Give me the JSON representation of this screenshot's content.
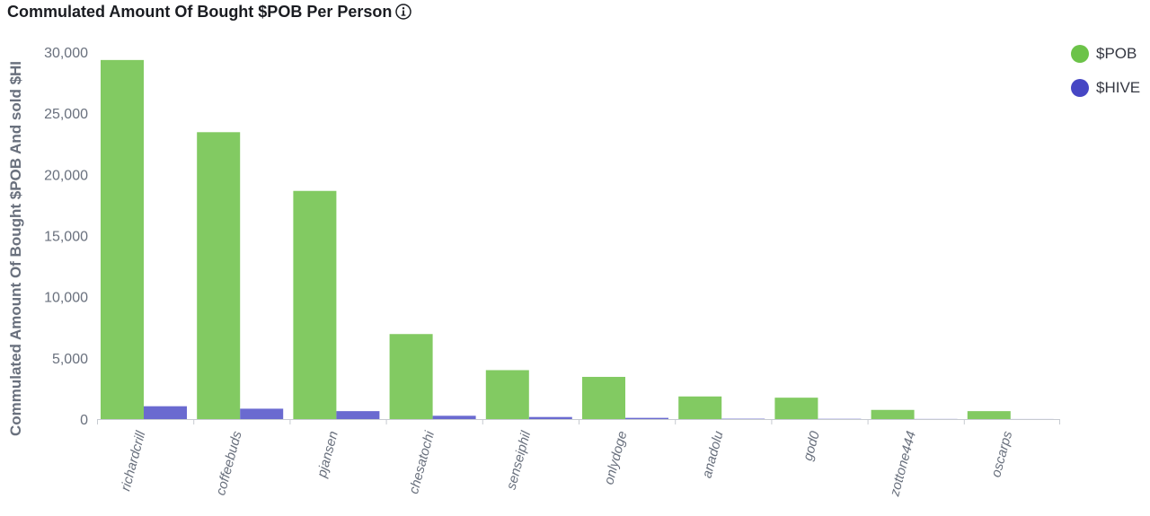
{
  "chart_data": {
    "type": "bar",
    "title": "Commulated Amount Of Bought $POB Per Person",
    "ylabel": "Commulated Amount Of Bought $POB And sold $HI",
    "xlabel": "",
    "categories": [
      "richardcrill",
      "coffeebuds",
      "pjansen",
      "chesatochi",
      "senseiphil",
      "onlydoge",
      "anadolu",
      "god0",
      "zottone444",
      "oscarps"
    ],
    "series": [
      {
        "name": "$POB",
        "color": "#82ca62",
        "values": [
          29350,
          23450,
          18650,
          6950,
          4000,
          3450,
          1850,
          1750,
          750,
          650
        ]
      },
      {
        "name": "$HIVE",
        "color": "#6a6ad0",
        "values": [
          1050,
          850,
          650,
          270,
          170,
          100,
          30,
          20,
          10,
          5
        ]
      }
    ],
    "ylim": [
      0,
      30000
    ],
    "yticks": [
      0,
      5000,
      10000,
      15000,
      20000,
      25000,
      30000
    ],
    "ytick_labels": [
      "0",
      "5,000",
      "10,000",
      "15,000",
      "20,000",
      "25,000",
      "30,000"
    ],
    "grid": false,
    "legend_position": "top-right",
    "legend": [
      {
        "label": "$POB",
        "color": "#6cc349"
      },
      {
        "label": "$HIVE",
        "color": "#4646c4"
      }
    ],
    "info_icon": "info-circle-icon"
  }
}
